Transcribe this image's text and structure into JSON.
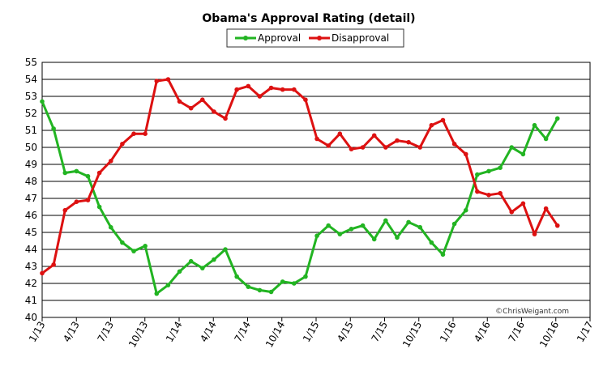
{
  "chart_data": {
    "type": "line",
    "title": "Obama's Approval Rating (detail)",
    "credit": "©ChrisWeigant.com",
    "x_ticks": [
      "1/13",
      "4/13",
      "7/13",
      "10/13",
      "1/14",
      "4/14",
      "7/14",
      "10/14",
      "1/15",
      "4/15",
      "7/15",
      "10/15",
      "1/16",
      "4/16",
      "7/16",
      "10/16",
      "1/17"
    ],
    "y_ticks": [
      "40",
      "41",
      "42",
      "43",
      "44",
      "45",
      "46",
      "47",
      "48",
      "49",
      "50",
      "51",
      "52",
      "53",
      "54",
      "55"
    ],
    "ylim": [
      40,
      55
    ],
    "x_range": [
      "1/13",
      "1/17"
    ],
    "grid": true,
    "legend_position": "top",
    "series": [
      {
        "name": "Approval",
        "color": "#22b422",
        "values": [
          52.7,
          51.1,
          48.5,
          48.6,
          48.3,
          46.5,
          45.3,
          44.4,
          43.9,
          44.2,
          41.4,
          41.9,
          42.7,
          43.3,
          42.9,
          43.4,
          44.0,
          42.4,
          41.8,
          41.6,
          41.5,
          42.1,
          42.0,
          42.4,
          44.8,
          45.4,
          44.9,
          45.2,
          45.4,
          44.6,
          45.7,
          44.7,
          45.6,
          45.3,
          44.4,
          43.7,
          45.5,
          46.3,
          48.4,
          48.6,
          48.8,
          50.0,
          49.6,
          51.3,
          50.5,
          51.7
        ]
      },
      {
        "name": "Disapproval",
        "color": "#dd1111",
        "values": [
          42.6,
          43.1,
          46.3,
          46.8,
          46.9,
          48.5,
          49.2,
          50.2,
          50.8,
          50.8,
          53.9,
          54.0,
          52.7,
          52.3,
          52.8,
          52.1,
          51.7,
          53.4,
          53.6,
          53.0,
          53.5,
          53.4,
          53.4,
          52.8,
          50.5,
          50.1,
          50.8,
          49.9,
          50.0,
          50.7,
          50.0,
          50.4,
          50.3,
          50.0,
          51.3,
          51.6,
          50.2,
          49.6,
          47.4,
          47.2,
          47.3,
          46.2,
          46.7,
          44.9,
          46.4,
          45.4
        ]
      }
    ]
  }
}
